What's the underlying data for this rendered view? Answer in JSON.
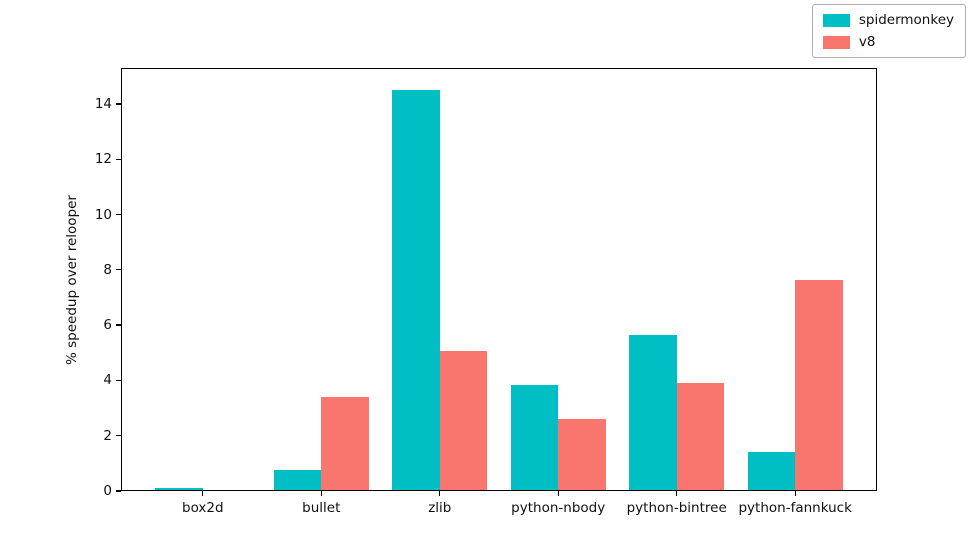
{
  "chart_data": {
    "type": "bar",
    "title": "",
    "xlabel": "",
    "ylabel": "% speedup over relooper",
    "categories": [
      "box2d",
      "bullet",
      "zlib",
      "python-nbody",
      "python-bintree",
      "python-fannkuck"
    ],
    "series": [
      {
        "name": "spidermonkey",
        "color": "#00BFC4",
        "values": [
          0.1,
          0.75,
          14.5,
          3.85,
          5.65,
          1.4
        ]
      },
      {
        "name": "v8",
        "color": "#F8766D",
        "values": [
          0,
          3.4,
          5.05,
          2.6,
          3.9,
          7.65
        ]
      }
    ],
    "yticks": [
      0,
      2,
      4,
      6,
      8,
      10,
      12,
      14
    ],
    "ylim": [
      0,
      15.3
    ],
    "grid": false,
    "legend_position": "upper right",
    "bar_group_width": 0.8,
    "background_color": "#ffffff",
    "axes_edge_color": "#000000"
  }
}
